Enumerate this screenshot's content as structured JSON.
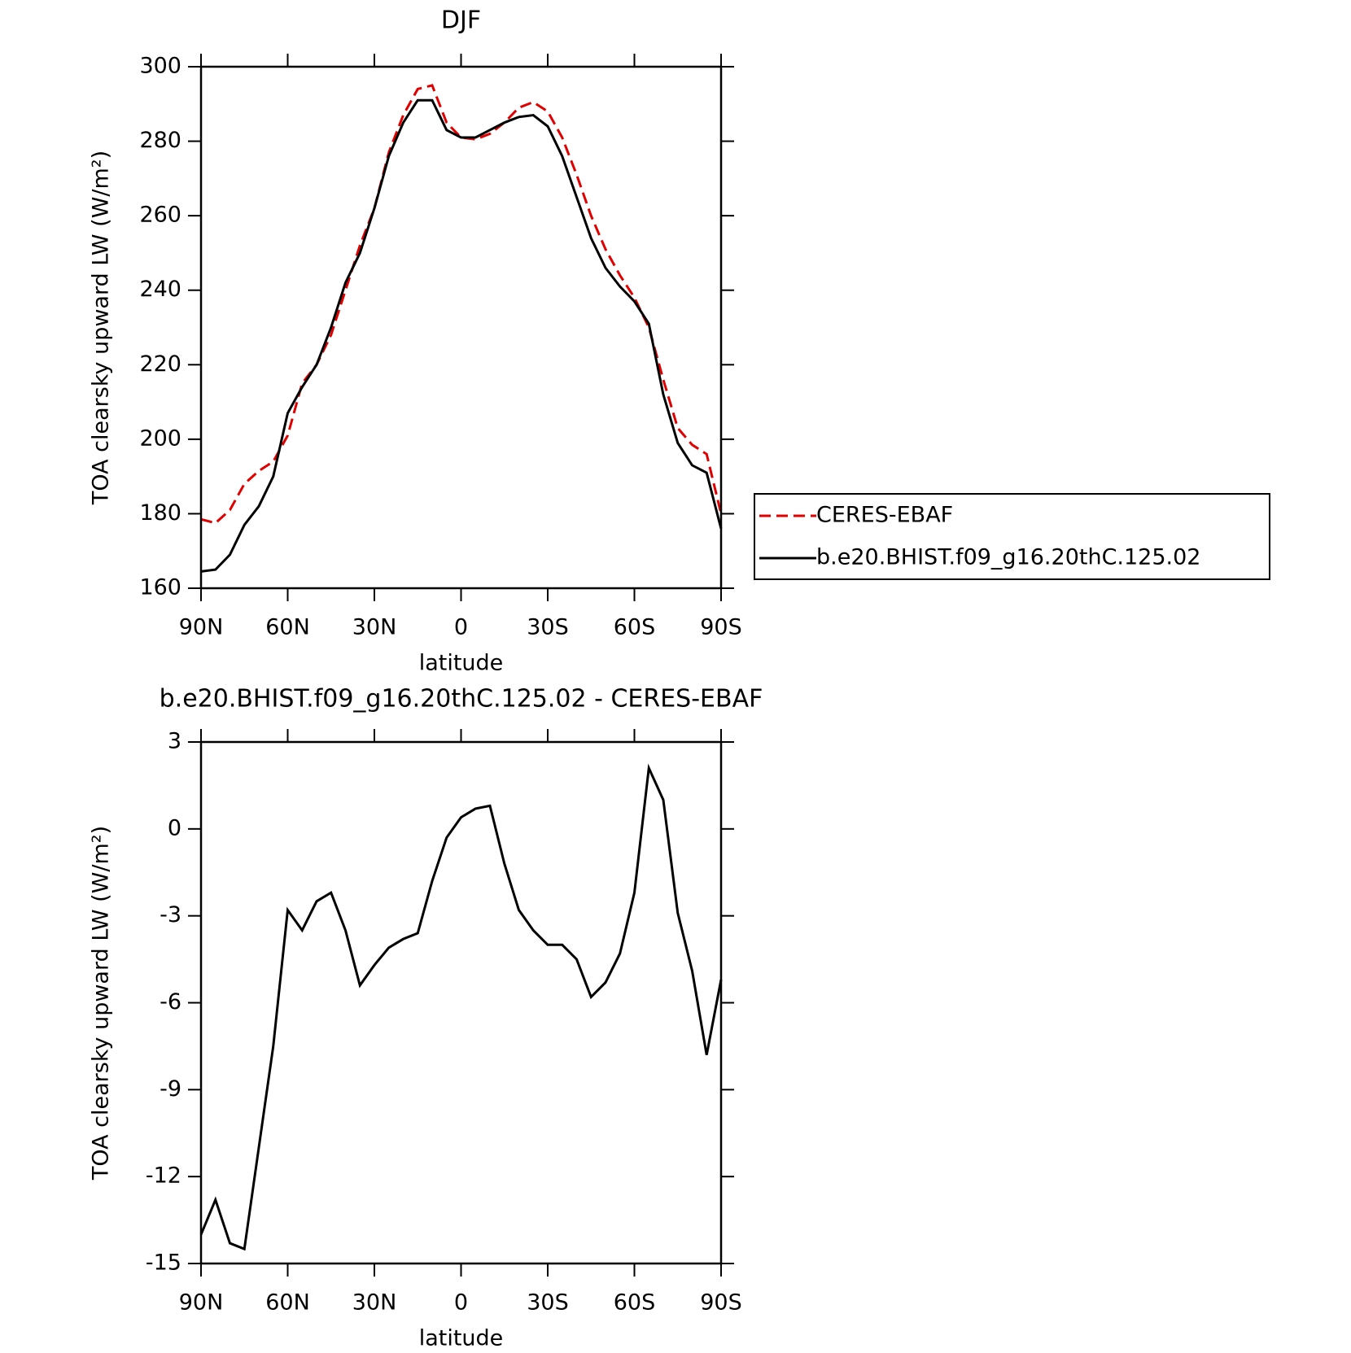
{
  "chart_data": [
    {
      "type": "line",
      "title": "DJF",
      "x_label": "latitude",
      "y_label": "TOA clearsky upward LW (W/m²)",
      "x": [
        90,
        85,
        80,
        75,
        70,
        65,
        60,
        55,
        50,
        45,
        40,
        35,
        30,
        25,
        20,
        15,
        10,
        5,
        0,
        -5,
        -10,
        -15,
        -20,
        -25,
        -30,
        -35,
        -40,
        -45,
        -50,
        -55,
        -60,
        -65,
        -70,
        -75,
        -80,
        -85,
        -90
      ],
      "series": [
        {
          "name": "CERES-EBAF",
          "color": "#e00000",
          "dash": true,
          "values": [
            178.5,
            177.5,
            181,
            188,
            191.5,
            194,
            201,
            215,
            220,
            228,
            240,
            252,
            262,
            277,
            287,
            294,
            295,
            285,
            281,
            280.5,
            282,
            285,
            289,
            290.5,
            288,
            281,
            271,
            260,
            251,
            244,
            238,
            230,
            216,
            203,
            198.5,
            196,
            180
          ]
        },
        {
          "name": "b.e20.BHIST.f09_g16.20thC.125.02",
          "color": "#000000",
          "dash": false,
          "values": [
            164.5,
            165,
            169,
            177,
            182,
            190,
            207,
            214,
            220,
            230,
            242,
            250,
            262,
            276,
            285,
            291,
            291,
            283,
            281,
            281,
            283,
            285,
            286.5,
            287,
            284,
            276,
            265,
            254,
            246,
            241,
            237,
            231,
            212,
            199,
            193,
            191,
            176
          ]
        }
      ],
      "xlim": [
        90,
        -90
      ],
      "xticks": [
        {
          "value": 90,
          "label": "90N"
        },
        {
          "value": 60,
          "label": "60N"
        },
        {
          "value": 30,
          "label": "30N"
        },
        0,
        {
          "value": -30,
          "label": "30S"
        },
        {
          "value": -60,
          "label": "60S"
        },
        {
          "value": -90,
          "label": "90S"
        }
      ],
      "ylim": [
        160,
        300
      ],
      "yticks": [
        160,
        180,
        200,
        220,
        240,
        260,
        280,
        300
      ],
      "legend": "right"
    },
    {
      "type": "line",
      "title": "b.e20.BHIST.f09_g16.20thC.125.02 - CERES-EBAF",
      "x_label": "latitude",
      "y_label": "TOA clearsky upward LW (W/m²)",
      "x": [
        90,
        85,
        80,
        75,
        70,
        65,
        60,
        55,
        50,
        45,
        40,
        35,
        30,
        25,
        20,
        15,
        10,
        5,
        0,
        -5,
        -10,
        -15,
        -20,
        -25,
        -30,
        -35,
        -40,
        -45,
        -50,
        -55,
        -60,
        -65,
        -70,
        -75,
        -80,
        -85,
        -90
      ],
      "series": [
        {
          "color": "#000000",
          "dash": false,
          "values": [
            -14,
            -12.8,
            -14.3,
            -14.5,
            -11,
            -7.5,
            -2.8,
            -3.5,
            -2.5,
            -2.2,
            -3.5,
            -5.4,
            -4.7,
            -4.1,
            -3.8,
            -3.6,
            -1.8,
            -0.3,
            0.4,
            0.7,
            0.8,
            -1.2,
            -2.8,
            -3.5,
            -4,
            -4,
            -4.5,
            -5.8,
            -5.3,
            -4.3,
            -2.2,
            2.1,
            1,
            -2.9,
            -4.9,
            -7.8,
            -5.2
          ]
        }
      ],
      "xlim": [
        90,
        -90
      ],
      "xticks": [
        {
          "value": 90,
          "label": "90N"
        },
        {
          "value": 60,
          "label": "60N"
        },
        {
          "value": 30,
          "label": "30N"
        },
        0,
        {
          "value": -30,
          "label": "30S"
        },
        {
          "value": -60,
          "label": "60S"
        },
        {
          "value": -90,
          "label": "90S"
        }
      ],
      "ylim": [
        -15,
        3
      ],
      "yticks": [
        -15,
        -12,
        -9,
        -6,
        -3,
        0,
        3
      ]
    }
  ]
}
